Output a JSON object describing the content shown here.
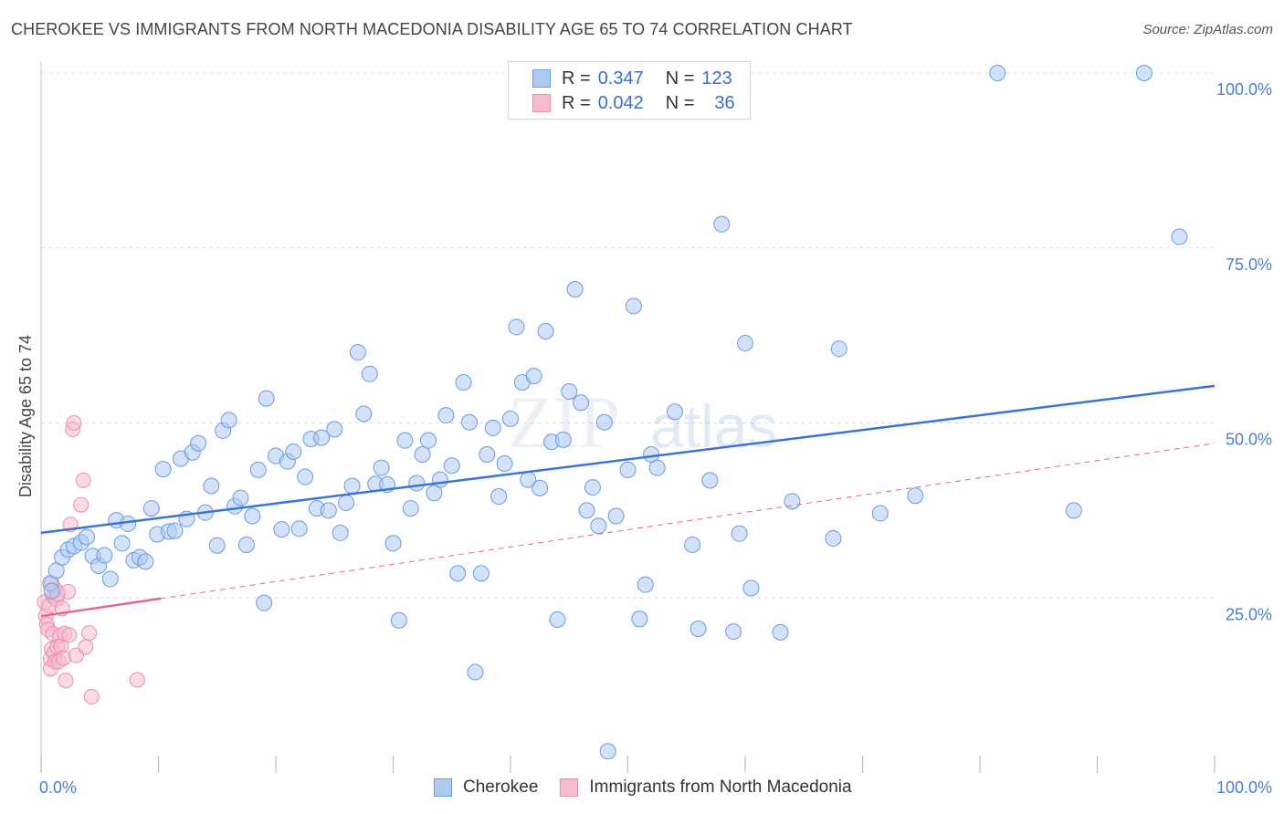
{
  "header": {
    "title": "CHEROKEE VS IMMIGRANTS FROM NORTH MACEDONIA DISABILITY AGE 65 TO 74 CORRELATION CHART",
    "source": "Source: ZipAtlas.com"
  },
  "legend": {
    "rows": [
      {
        "r_label": "R =",
        "r_value": "0.347",
        "n_label": "N =",
        "n_value": "123"
      },
      {
        "r_label": "R =",
        "r_value": "0.042",
        "n_label": "N =",
        "n_value": "36"
      }
    ]
  },
  "bottom_legend": {
    "items": [
      {
        "label": "Cherokee"
      },
      {
        "label": "Immigrants from North Macedonia"
      }
    ]
  },
  "watermark": {
    "zip": "ZIP",
    "atlas": "atlas"
  },
  "colors": {
    "series1_fill": "#aecbf2",
    "series1_stroke": "#6a9be0",
    "series1_line": "#3a74d4",
    "series2_fill": "#f6bccd",
    "series2_stroke": "#ea8fac",
    "series2_line": "#e06790",
    "grid": "#dcdcdc",
    "tick_text": "#4a7fd4"
  },
  "chart_data": {
    "type": "scatter",
    "title": "CHEROKEE VS IMMIGRANTS FROM NORTH MACEDONIA DISABILITY AGE 65 TO 74 CORRELATION CHART",
    "xlabel": "",
    "ylabel": "Disability Age 65 to 74",
    "xlim": [
      0,
      100
    ],
    "ylim": [
      0,
      102
    ],
    "x_tick_labels": [
      "0.0%",
      "100.0%"
    ],
    "y_ticks": [
      25,
      50,
      75,
      100
    ],
    "y_tick_labels": [
      "25.0%",
      "50.0%",
      "75.0%",
      "100.0%"
    ],
    "grid": true,
    "series": [
      {
        "name": "Cherokee",
        "r": 0.347,
        "n": 123,
        "trend": {
          "x": [
            0,
            100
          ],
          "y": [
            34.3,
            55.3
          ],
          "style": "solid"
        },
        "points": [
          [
            0.8,
            27.1
          ],
          [
            0.9,
            26.0
          ],
          [
            1.3,
            28.9
          ],
          [
            1.8,
            30.8
          ],
          [
            2.3,
            31.9
          ],
          [
            2.8,
            32.4
          ],
          [
            3.4,
            32.9
          ],
          [
            3.9,
            33.7
          ],
          [
            4.4,
            31.0
          ],
          [
            4.9,
            29.6
          ],
          [
            5.4,
            31.1
          ],
          [
            5.9,
            27.7
          ],
          [
            6.4,
            36.1
          ],
          [
            6.9,
            32.8
          ],
          [
            7.4,
            35.6
          ],
          [
            7.9,
            30.4
          ],
          [
            8.4,
            30.8
          ],
          [
            8.9,
            30.2
          ],
          [
            9.4,
            37.8
          ],
          [
            9.9,
            34.1
          ],
          [
            10.4,
            43.4
          ],
          [
            10.9,
            34.5
          ],
          [
            11.4,
            34.6
          ],
          [
            11.9,
            44.9
          ],
          [
            12.4,
            36.3
          ],
          [
            12.9,
            45.8
          ],
          [
            13.4,
            47.1
          ],
          [
            14.0,
            37.2
          ],
          [
            14.5,
            41.0
          ],
          [
            15.0,
            32.5
          ],
          [
            15.5,
            48.9
          ],
          [
            16.0,
            50.4
          ],
          [
            16.5,
            38.1
          ],
          [
            17.0,
            39.3
          ],
          [
            17.5,
            32.6
          ],
          [
            18.0,
            36.7
          ],
          [
            18.5,
            43.3
          ],
          [
            19.0,
            24.3
          ],
          [
            19.2,
            53.5
          ],
          [
            20.0,
            45.3
          ],
          [
            20.5,
            34.8
          ],
          [
            21.0,
            44.5
          ],
          [
            21.5,
            45.9
          ],
          [
            22.0,
            34.9
          ],
          [
            22.5,
            42.3
          ],
          [
            23.0,
            47.7
          ],
          [
            23.5,
            37.8
          ],
          [
            23.9,
            47.9
          ],
          [
            24.5,
            37.5
          ],
          [
            25.0,
            49.1
          ],
          [
            25.5,
            34.3
          ],
          [
            26.0,
            38.6
          ],
          [
            26.5,
            41.0
          ],
          [
            27.0,
            60.1
          ],
          [
            27.5,
            51.3
          ],
          [
            28.0,
            57.0
          ],
          [
            28.5,
            41.3
          ],
          [
            29.0,
            43.6
          ],
          [
            29.5,
            41.2
          ],
          [
            30.0,
            32.8
          ],
          [
            30.5,
            21.8
          ],
          [
            31.0,
            47.5
          ],
          [
            31.5,
            37.8
          ],
          [
            32.0,
            41.4
          ],
          [
            32.5,
            45.5
          ],
          [
            33.0,
            47.5
          ],
          [
            33.5,
            40.0
          ],
          [
            34.0,
            41.9
          ],
          [
            34.5,
            51.1
          ],
          [
            35.0,
            43.9
          ],
          [
            35.5,
            28.5
          ],
          [
            36.0,
            55.8
          ],
          [
            36.5,
            50.1
          ],
          [
            37.0,
            14.4
          ],
          [
            37.5,
            28.5
          ],
          [
            38.0,
            45.5
          ],
          [
            38.5,
            49.3
          ],
          [
            39.0,
            39.5
          ],
          [
            39.5,
            44.2
          ],
          [
            40.0,
            50.6
          ],
          [
            40.5,
            63.7
          ],
          [
            41.0,
            55.8
          ],
          [
            41.5,
            41.9
          ],
          [
            42.0,
            56.7
          ],
          [
            42.5,
            40.7
          ],
          [
            43.0,
            63.1
          ],
          [
            43.5,
            47.3
          ],
          [
            44.0,
            21.9
          ],
          [
            44.5,
            47.6
          ],
          [
            45.0,
            54.5
          ],
          [
            45.5,
            69.1
          ],
          [
            46.0,
            52.9
          ],
          [
            46.5,
            37.5
          ],
          [
            47.0,
            40.8
          ],
          [
            47.5,
            35.3
          ],
          [
            48.0,
            50.1
          ],
          [
            48.3,
            3.1
          ],
          [
            49.0,
            36.7
          ],
          [
            50.0,
            43.3
          ],
          [
            50.5,
            66.7
          ],
          [
            51.0,
            22.0
          ],
          [
            51.5,
            26.9
          ],
          [
            52.0,
            45.5
          ],
          [
            52.5,
            43.6
          ],
          [
            54.0,
            51.6
          ],
          [
            55.5,
            32.6
          ],
          [
            56.0,
            20.6
          ],
          [
            57.0,
            41.8
          ],
          [
            58.0,
            78.4
          ],
          [
            59.0,
            20.2
          ],
          [
            59.5,
            34.2
          ],
          [
            60.0,
            61.4
          ],
          [
            60.5,
            26.4
          ],
          [
            63.0,
            20.1
          ],
          [
            64.0,
            38.8
          ],
          [
            67.5,
            33.5
          ],
          [
            68.0,
            60.6
          ],
          [
            71.5,
            37.1
          ],
          [
            74.5,
            39.6
          ],
          [
            81.5,
            100.0
          ],
          [
            88.0,
            37.5
          ],
          [
            94.0,
            100.0
          ],
          [
            97.0,
            76.6
          ]
        ]
      },
      {
        "name": "Immigrants from North Macedonia",
        "r": 0.042,
        "n": 36,
        "trend": {
          "x": [
            0,
            100
          ],
          "y": [
            22.4,
            47.1
          ],
          "style": "dashed",
          "solid_x_max": 10.2
        },
        "points": [
          [
            0.3,
            24.4
          ],
          [
            0.4,
            22.4
          ],
          [
            0.5,
            21.2
          ],
          [
            0.6,
            20.5
          ],
          [
            0.7,
            23.9
          ],
          [
            0.8,
            16.3
          ],
          [
            0.8,
            14.9
          ],
          [
            0.9,
            17.7
          ],
          [
            1.0,
            25.3
          ],
          [
            1.0,
            19.9
          ],
          [
            1.1,
            17.1
          ],
          [
            1.2,
            26.2
          ],
          [
            1.2,
            15.9
          ],
          [
            1.3,
            24.8
          ],
          [
            1.4,
            18.0
          ],
          [
            1.5,
            15.9
          ],
          [
            1.6,
            19.6
          ],
          [
            1.7,
            18.1
          ],
          [
            1.8,
            23.5
          ],
          [
            1.9,
            16.4
          ],
          [
            2.0,
            19.9
          ],
          [
            2.1,
            13.2
          ],
          [
            2.3,
            25.9
          ],
          [
            2.4,
            19.7
          ],
          [
            2.5,
            35.5
          ],
          [
            2.7,
            49.1
          ],
          [
            2.8,
            50.0
          ],
          [
            3.0,
            16.8
          ],
          [
            3.4,
            38.3
          ],
          [
            3.6,
            41.8
          ],
          [
            3.8,
            18.0
          ],
          [
            4.1,
            20.0
          ],
          [
            4.3,
            10.9
          ],
          [
            8.2,
            13.3
          ],
          [
            0.9,
            27.1
          ],
          [
            1.4,
            25.6
          ]
        ]
      }
    ]
  }
}
